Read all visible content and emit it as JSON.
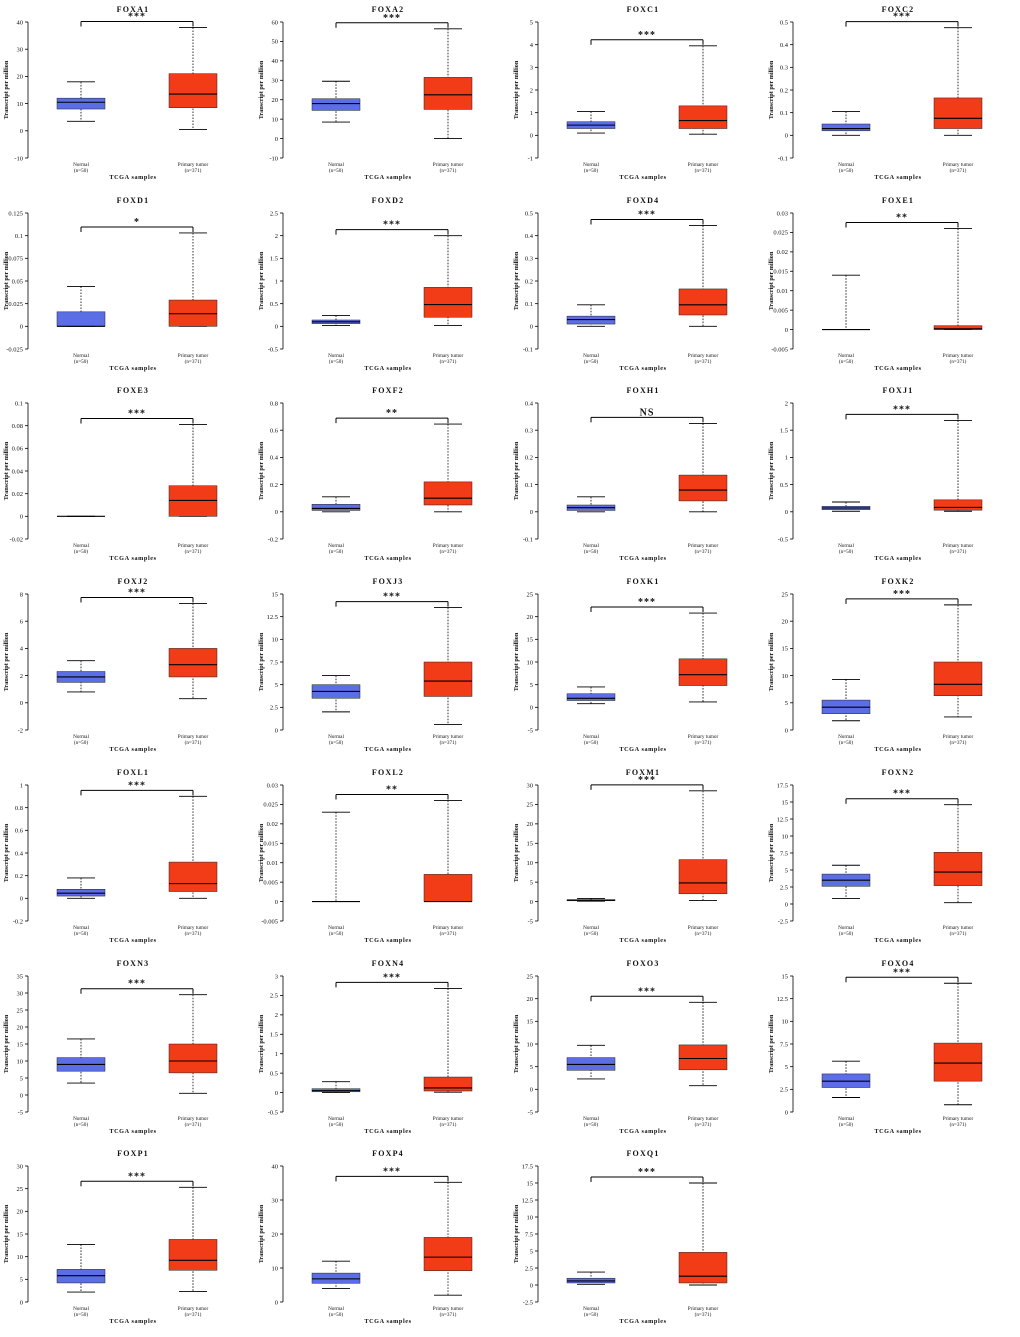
{
  "shared": {
    "ylabel": "Transcript per million",
    "xlabel": "TCGA samples",
    "groups": [
      {
        "name": "Normal",
        "n": "(n=50)",
        "color": "#5b6ee5"
      },
      {
        "name": "Primary tumor",
        "n": "(n=371)",
        "color": "#f23b17"
      }
    ],
    "median_color": "#000000"
  },
  "chart_data": [
    {
      "type": "box",
      "title": "FOXA1",
      "sig": "***",
      "ylim": [
        -10,
        40
      ],
      "ticks": [
        "-10",
        "0",
        "10",
        "20",
        "30",
        "40"
      ],
      "normal": {
        "min": 3.5,
        "q1": 8,
        "median": 10.5,
        "q3": 12,
        "max": 18
      },
      "tumor": {
        "min": 0.5,
        "q1": 8.5,
        "median": 13.5,
        "q3": 21,
        "max": 38
      }
    },
    {
      "type": "box",
      "title": "FOXA2",
      "sig": "***",
      "ylim": [
        -10,
        60
      ],
      "ticks": [
        "-10",
        "0",
        "10",
        "20",
        "30",
        "40",
        "50",
        "60"
      ],
      "normal": {
        "min": 8.5,
        "q1": 14.5,
        "median": 18,
        "q3": 20.5,
        "max": 29.5
      },
      "tumor": {
        "min": 0,
        "q1": 15,
        "median": 22.5,
        "q3": 31.5,
        "max": 56.5
      }
    },
    {
      "type": "box",
      "title": "FOXC1",
      "sig": "***",
      "ylim": [
        -1,
        5
      ],
      "ticks": [
        "-1",
        "0",
        "1",
        "2",
        "3",
        "4",
        "5"
      ],
      "normal": {
        "min": 0.1,
        "q1": 0.3,
        "median": 0.45,
        "q3": 0.6,
        "max": 1.05
      },
      "tumor": {
        "min": 0.05,
        "q1": 0.3,
        "median": 0.65,
        "q3": 1.3,
        "max": 3.95
      }
    },
    {
      "type": "box",
      "title": "FOXC2",
      "sig": "***",
      "ylim": [
        -0.1,
        0.5
      ],
      "ticks": [
        "-0.1",
        "0",
        "0.1",
        "0.2",
        "0.3",
        "0.4",
        "0.5"
      ],
      "normal": {
        "min": 0,
        "q1": 0.02,
        "median": 0.03,
        "q3": 0.05,
        "max": 0.105
      },
      "tumor": {
        "min": 0,
        "q1": 0.03,
        "median": 0.075,
        "q3": 0.165,
        "max": 0.475
      }
    },
    {
      "type": "box",
      "title": "FOXD1",
      "sig": "*",
      "ylim": [
        -0.025,
        0.125
      ],
      "ticks": [
        "-0.025",
        "0",
        "0.025",
        "0.05",
        "0.075",
        "0.1",
        "0.125"
      ],
      "normal": {
        "min": 0,
        "q1": 0,
        "median": 0,
        "q3": 0.016,
        "max": 0.044
      },
      "tumor": {
        "min": 0,
        "q1": 0,
        "median": 0.014,
        "q3": 0.029,
        "max": 0.103
      }
    },
    {
      "type": "box",
      "title": "FOXD2",
      "sig": "***",
      "ylim": [
        -0.5,
        2.5
      ],
      "ticks": [
        "-0.5",
        "0",
        "0.5",
        "1",
        "1.5",
        "2",
        "2.5"
      ],
      "normal": {
        "min": 0.02,
        "q1": 0.06,
        "median": 0.1,
        "q3": 0.14,
        "max": 0.24
      },
      "tumor": {
        "min": 0.02,
        "q1": 0.2,
        "median": 0.48,
        "q3": 0.86,
        "max": 2
      }
    },
    {
      "type": "box",
      "title": "FOXD4",
      "sig": "***",
      "ylim": [
        -0.1,
        0.5
      ],
      "ticks": [
        "-0.1",
        "0",
        "0.1",
        "0.2",
        "0.3",
        "0.4",
        "0.5"
      ],
      "normal": {
        "min": 0,
        "q1": 0.01,
        "median": 0.03,
        "q3": 0.045,
        "max": 0.095
      },
      "tumor": {
        "min": 0,
        "q1": 0.05,
        "median": 0.095,
        "q3": 0.165,
        "max": 0.445
      }
    },
    {
      "type": "box",
      "title": "FOXE1",
      "sig": "**",
      "ylim": [
        -0.005,
        0.03
      ],
      "ticks": [
        "-0.005",
        "0",
        "0.005",
        "0.01",
        "0.015",
        "0.02",
        "0.025",
        "0.03"
      ],
      "normal": {
        "min": 0,
        "q1": 0,
        "median": 0,
        "q3": 0,
        "max": 0.014
      },
      "tumor": {
        "min": 0,
        "q1": 0,
        "median": 0.0002,
        "q3": 0.001,
        "max": 0.026
      }
    },
    {
      "type": "box",
      "title": "FOXE3",
      "sig": "***",
      "ylim": [
        -0.02,
        0.1
      ],
      "ticks": [
        "-0.02",
        "0",
        "0.02",
        "0.04",
        "0.06",
        "0.08",
        "0.1"
      ],
      "normal": {
        "min": 0,
        "q1": 0,
        "median": 0,
        "q3": 0,
        "max": 0
      },
      "tumor": {
        "min": 0,
        "q1": 0,
        "median": 0.014,
        "q3": 0.027,
        "max": 0.081
      }
    },
    {
      "type": "box",
      "title": "FOXF2",
      "sig": "**",
      "ylim": [
        -0.2,
        0.8
      ],
      "ticks": [
        "-0.2",
        "0",
        "0.2",
        "0.4",
        "0.6",
        "0.8"
      ],
      "normal": {
        "min": 0,
        "q1": 0.01,
        "median": 0.025,
        "q3": 0.055,
        "max": 0.11
      },
      "tumor": {
        "min": 0,
        "q1": 0.05,
        "median": 0.1,
        "q3": 0.22,
        "max": 0.645
      }
    },
    {
      "type": "box",
      "title": "FOXH1",
      "sig": "NS",
      "ylim": [
        -0.1,
        0.4
      ],
      "ticks": [
        "-0.1",
        "0",
        "0.1",
        "0.2",
        "0.3",
        "0.4"
      ],
      "normal": {
        "min": 0,
        "q1": 0.005,
        "median": 0.015,
        "q3": 0.025,
        "max": 0.055
      },
      "tumor": {
        "min": 0,
        "q1": 0.04,
        "median": 0.08,
        "q3": 0.135,
        "max": 0.325
      }
    },
    {
      "type": "box",
      "title": "FOXJ1",
      "sig": "***",
      "ylim": [
        -0.5,
        2
      ],
      "ticks": [
        "-0.5",
        "0",
        "0.5",
        "1",
        "1.5",
        "2"
      ],
      "normal": {
        "min": 0.01,
        "q1": 0.04,
        "median": 0.07,
        "q3": 0.1,
        "max": 0.18
      },
      "tumor": {
        "min": 0.01,
        "q1": 0.03,
        "median": 0.08,
        "q3": 0.22,
        "max": 1.68
      }
    },
    {
      "type": "box",
      "title": "FOXJ2",
      "sig": "***",
      "ylim": [
        -2,
        8
      ],
      "ticks": [
        "-2",
        "0",
        "2",
        "4",
        "6",
        "8"
      ],
      "normal": {
        "min": 0.8,
        "q1": 1.5,
        "median": 1.9,
        "q3": 2.3,
        "max": 3.1
      },
      "tumor": {
        "min": 0.3,
        "q1": 1.9,
        "median": 2.8,
        "q3": 4,
        "max": 7.3
      }
    },
    {
      "type": "box",
      "title": "FOXJ3",
      "sig": "***",
      "ylim": [
        0,
        15
      ],
      "ticks": [
        "0",
        "2.5",
        "5",
        "7.5",
        "10",
        "12.5",
        "15"
      ],
      "normal": {
        "min": 2,
        "q1": 3.5,
        "median": 4.25,
        "q3": 5,
        "max": 6
      },
      "tumor": {
        "min": 0.6,
        "q1": 3.7,
        "median": 5.4,
        "q3": 7.5,
        "max": 13.5
      }
    },
    {
      "type": "box",
      "title": "FOXK1",
      "sig": "***",
      "ylim": [
        -5,
        25
      ],
      "ticks": [
        "-5",
        "0",
        "5",
        "10",
        "15",
        "20",
        "25"
      ],
      "normal": {
        "min": 0.8,
        "q1": 1.5,
        "median": 2,
        "q3": 3,
        "max": 4.5
      },
      "tumor": {
        "min": 1.2,
        "q1": 4.8,
        "median": 7.2,
        "q3": 10.7,
        "max": 20.8
      }
    },
    {
      "type": "box",
      "title": "FOXK2",
      "sig": "***",
      "ylim": [
        0,
        25
      ],
      "ticks": [
        "0",
        "5",
        "10",
        "15",
        "20",
        "25"
      ],
      "normal": {
        "min": 1.7,
        "q1": 3,
        "median": 4.2,
        "q3": 5.5,
        "max": 9.3
      },
      "tumor": {
        "min": 2.4,
        "q1": 6.3,
        "median": 8.4,
        "q3": 12.5,
        "max": 23
      }
    },
    {
      "type": "box",
      "title": "FOXL1",
      "sig": "***",
      "ylim": [
        -0.2,
        1
      ],
      "ticks": [
        "-0.2",
        "0",
        "0.2",
        "0.4",
        "0.6",
        "0.8",
        "1"
      ],
      "normal": {
        "min": 0,
        "q1": 0.02,
        "median": 0.045,
        "q3": 0.08,
        "max": 0.18
      },
      "tumor": {
        "min": 0,
        "q1": 0.06,
        "median": 0.13,
        "q3": 0.32,
        "max": 0.9
      }
    },
    {
      "type": "box",
      "title": "FOXL2",
      "sig": "**",
      "ylim": [
        -0.005,
        0.03
      ],
      "ticks": [
        "-0.005",
        "0",
        "0.005",
        "0.01",
        "0.015",
        "0.02",
        "0.025",
        "0.03"
      ],
      "normal": {
        "min": 0,
        "q1": 0,
        "median": 0,
        "q3": 0,
        "max": 0.023
      },
      "tumor": {
        "min": 0,
        "q1": 0,
        "median": 0,
        "q3": 0.007,
        "max": 0.026
      }
    },
    {
      "type": "box",
      "title": "FOXM1",
      "sig": "***",
      "ylim": [
        -5,
        30
      ],
      "ticks": [
        "-5",
        "0",
        "5",
        "10",
        "15",
        "20",
        "25",
        "30"
      ],
      "normal": {
        "min": 0.1,
        "q1": 0.2,
        "median": 0.35,
        "q3": 0.5,
        "max": 0.8
      },
      "tumor": {
        "min": 0.3,
        "q1": 2,
        "median": 4.8,
        "q3": 10.8,
        "max": 28.5
      }
    },
    {
      "type": "box",
      "title": "FOXN2",
      "sig": "***",
      "ylim": [
        -2.5,
        17.5
      ],
      "ticks": [
        "-2.5",
        "0",
        "2.5",
        "5",
        "7.5",
        "10",
        "12.5",
        "15",
        "17.5"
      ],
      "normal": {
        "min": 0.8,
        "q1": 2.6,
        "median": 3.5,
        "q3": 4.4,
        "max": 5.7
      },
      "tumor": {
        "min": 0.2,
        "q1": 2.7,
        "median": 4.7,
        "q3": 7.6,
        "max": 14.6
      }
    },
    {
      "type": "box",
      "title": "FOXN3",
      "sig": "***",
      "ylim": [
        -5,
        35
      ],
      "ticks": [
        "-5",
        "0",
        "5",
        "10",
        "15",
        "20",
        "25",
        "30",
        "35"
      ],
      "normal": {
        "min": 3.5,
        "q1": 7,
        "median": 9,
        "q3": 11,
        "max": 16.5
      },
      "tumor": {
        "min": 0.5,
        "q1": 6.5,
        "median": 10,
        "q3": 15,
        "max": 29.5
      }
    },
    {
      "type": "box",
      "title": "FOXN4",
      "sig": "***",
      "ylim": [
        -0.5,
        3
      ],
      "ticks": [
        "-0.5",
        "0",
        "0.5",
        "1",
        "1.5",
        "2",
        "2.5",
        "3"
      ],
      "normal": {
        "min": 0,
        "q1": 0.02,
        "median": 0.05,
        "q3": 0.1,
        "max": 0.28
      },
      "tumor": {
        "min": 0.01,
        "q1": 0.04,
        "median": 0.12,
        "q3": 0.4,
        "max": 2.68
      }
    },
    {
      "type": "box",
      "title": "FOXO3",
      "sig": "***",
      "ylim": [
        -5,
        25
      ],
      "ticks": [
        "-5",
        "0",
        "5",
        "10",
        "15",
        "20",
        "25"
      ],
      "normal": {
        "min": 2.3,
        "q1": 4.2,
        "median": 5.5,
        "q3": 7,
        "max": 9.7
      },
      "tumor": {
        "min": 0.8,
        "q1": 4.3,
        "median": 6.8,
        "q3": 9.8,
        "max": 19.2
      }
    },
    {
      "type": "box",
      "title": "FOXO4",
      "sig": "***",
      "ylim": [
        0,
        15
      ],
      "ticks": [
        "0",
        "2.5",
        "5",
        "7.5",
        "10",
        "12.5",
        "15"
      ],
      "normal": {
        "min": 1.6,
        "q1": 2.7,
        "median": 3.4,
        "q3": 4.2,
        "max": 5.6
      },
      "tumor": {
        "min": 0.8,
        "q1": 3.4,
        "median": 5.4,
        "q3": 7.6,
        "max": 14.2
      }
    },
    {
      "type": "box",
      "title": "FOXP1",
      "sig": "***",
      "ylim": [
        0,
        30
      ],
      "ticks": [
        "0",
        "5",
        "10",
        "15",
        "20",
        "25",
        "30"
      ],
      "normal": {
        "min": 2.2,
        "q1": 4.2,
        "median": 5.8,
        "q3": 7.2,
        "max": 12.7
      },
      "tumor": {
        "min": 2.3,
        "q1": 7,
        "median": 9.2,
        "q3": 13.8,
        "max": 25.3
      }
    },
    {
      "type": "box",
      "title": "FOXP4",
      "sig": "***",
      "ylim": [
        0,
        40
      ],
      "ticks": [
        "0",
        "10",
        "20",
        "30",
        "40"
      ],
      "normal": {
        "min": 4,
        "q1": 5.5,
        "median": 6.8,
        "q3": 8.5,
        "max": 12
      },
      "tumor": {
        "min": 2,
        "q1": 9.2,
        "median": 13.2,
        "q3": 19,
        "max": 35.2
      }
    },
    {
      "type": "box",
      "title": "FOXQ1",
      "sig": "***",
      "ylim": [
        -2.5,
        17.5
      ],
      "ticks": [
        "-2.5",
        "0",
        "2.5",
        "5",
        "7.5",
        "10",
        "12.5",
        "15",
        "17.5"
      ],
      "normal": {
        "min": 0.1,
        "q1": 0.3,
        "median": 0.6,
        "q3": 1,
        "max": 1.9
      },
      "tumor": {
        "min": 0,
        "q1": 0.3,
        "median": 1.3,
        "q3": 4.8,
        "max": 15
      }
    }
  ]
}
